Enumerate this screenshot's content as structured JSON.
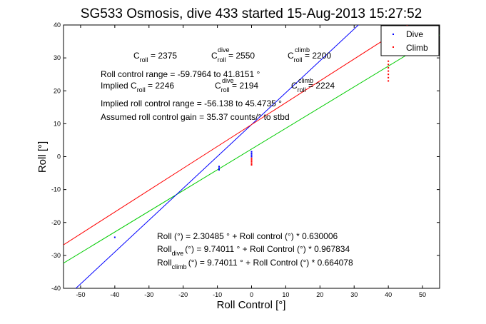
{
  "chart_data": {
    "type": "scatter",
    "title": "SG533 Osmosis, dive 433 started 15-Aug-2013 15:27:52",
    "xlabel": "Roll Control [°]",
    "ylabel": "Roll [°]",
    "xlim": [
      -55,
      55
    ],
    "ylim": [
      -40,
      40
    ],
    "xticks": [
      -50,
      -40,
      -30,
      -20,
      -10,
      0,
      10,
      20,
      30,
      40,
      50
    ],
    "yticks": [
      -40,
      -30,
      -20,
      -10,
      0,
      10,
      20,
      30,
      40
    ],
    "grid": false,
    "legend_position": "top-right",
    "series": [
      {
        "name": "Dive",
        "color": "#0000ff",
        "marker": "point",
        "points": [
          [
            -40,
            -24.5
          ],
          [
            -9.5,
            -3.0
          ],
          [
            -9.5,
            -3.5
          ],
          [
            -9.5,
            -4.0
          ],
          [
            0,
            1.5
          ],
          [
            0,
            1.0
          ],
          [
            0,
            0.5
          ],
          [
            0,
            0.0
          ]
        ]
      },
      {
        "name": "Climb",
        "color": "#ff0000",
        "marker": "point",
        "points": [
          [
            0,
            -0.5
          ],
          [
            0,
            -1.0
          ],
          [
            0,
            -1.5
          ],
          [
            0,
            -2.0
          ],
          [
            0,
            -2.5
          ],
          [
            40,
            29.0
          ],
          [
            40,
            28.0
          ],
          [
            40,
            27.0
          ],
          [
            40,
            26.0
          ],
          [
            40,
            25.0
          ],
          [
            40,
            24.0
          ],
          [
            40,
            23.0
          ]
        ]
      }
    ],
    "fit_lines": [
      {
        "label": "Roll (°) = 2.30485 ° + Roll control (°) * 0.630006",
        "color": "#00cc00",
        "intercept": 2.30485,
        "slope": 0.630006
      },
      {
        "label": "Roll dive (°) = 9.74011 ° + Roll Control (°) * 0.967834",
        "color": "#0000ff",
        "intercept": 9.74011,
        "slope": 0.967834
      },
      {
        "label": "Roll climb (°) = 9.74011 ° + Roll Control (°) * 0.664078",
        "color": "#ff0000",
        "intercept": 9.74011,
        "slope": 0.664078
      }
    ],
    "annotations": {
      "c_roll": {
        "base": "C",
        "sub": "roll",
        "value": " = 2375"
      },
      "c_roll_dive": {
        "base": "C",
        "sub": "roll",
        "sup": "dive",
        "value": " = 2550"
      },
      "c_roll_climb": {
        "base": "C",
        "sub": "roll",
        "sup": "climb",
        "value": " = 2200"
      },
      "range": "Roll control range = -59.7964 to 41.8151 °",
      "implied_prefix": "Implied C",
      "implied_sub": "roll",
      "implied_value": " = 2246",
      "implied_dive": {
        "base": "C",
        "sub": "roll",
        "sup": "dive",
        "value": " = 2194"
      },
      "implied_climb": {
        "base": "C",
        "sub": "roll",
        "sup": "climb",
        "value": " = 2224"
      },
      "implied_range": "Implied roll control range = -56.138 to 45.4735 °",
      "gain": "Assumed roll control gain = 35.37 counts/° to stbd",
      "eq1": "Roll (°) = 2.30485 ° + Roll control (°) * 0.630006",
      "eq2_prefix": "Roll",
      "eq2_sub": "dive",
      "eq2_rest": "(°) = 9.74011 ° + Roll Control (°) * 0.967834",
      "eq3_prefix": "Roll",
      "eq3_sub": "climb",
      "eq3_rest": "(°) = 9.74011 ° + Roll Control (°) * 0.664078"
    }
  }
}
